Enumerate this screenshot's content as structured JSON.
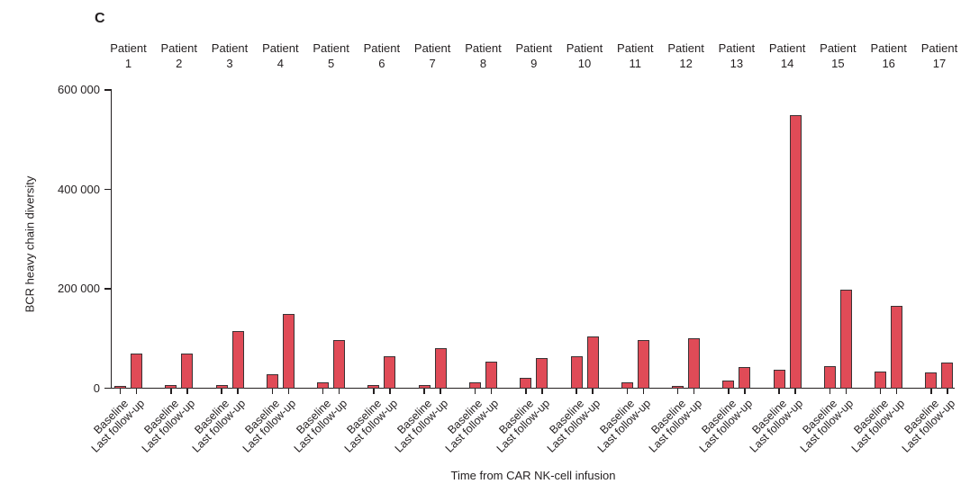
{
  "panel_label": "C",
  "colors": {
    "bar_fill": "#e04b57",
    "bar_stroke": "#3a3234",
    "axis": "#231f20",
    "text": "#231f20",
    "background": "#ffffff"
  },
  "chart_data": {
    "type": "bar",
    "title": "",
    "ylabel": "BCR heavy chain diversity",
    "xlabel": "Time from CAR NK-cell infusion",
    "ylim": [
      0,
      600000
    ],
    "grid": false,
    "legend": false,
    "ytick_values": [
      0,
      200000,
      400000,
      600000
    ],
    "ytick_labels": [
      "0",
      "200 000",
      "400 000",
      "600 000"
    ],
    "group_header_word": "Patient",
    "patient_numbers": [
      "1",
      "2",
      "3",
      "4",
      "5",
      "6",
      "7",
      "8",
      "9",
      "10",
      "11",
      "12",
      "13",
      "14",
      "15",
      "16",
      "17"
    ],
    "categories": [
      "Patient 1",
      "Patient 2",
      "Patient 3",
      "Patient 4",
      "Patient 5",
      "Patient 6",
      "Patient 7",
      "Patient 8",
      "Patient 9",
      "Patient 10",
      "Patient 11",
      "Patient 12",
      "Patient 13",
      "Patient 14",
      "Patient 15",
      "Patient 16",
      "Patient 17"
    ],
    "series": [
      {
        "name": "Baseline",
        "values": [
          5000,
          7000,
          6000,
          28000,
          11000,
          7000,
          6000,
          12000,
          20000,
          65000,
          12000,
          5000,
          16000,
          38000,
          44000,
          33000,
          31000
        ]
      },
      {
        "name": "Last follow-up",
        "values": [
          70000,
          70000,
          115000,
          150000,
          96000,
          65000,
          81000,
          53000,
          60000,
          104000,
          96000,
          100000,
          42000,
          550000,
          198000,
          166000,
          51000
        ]
      }
    ]
  }
}
